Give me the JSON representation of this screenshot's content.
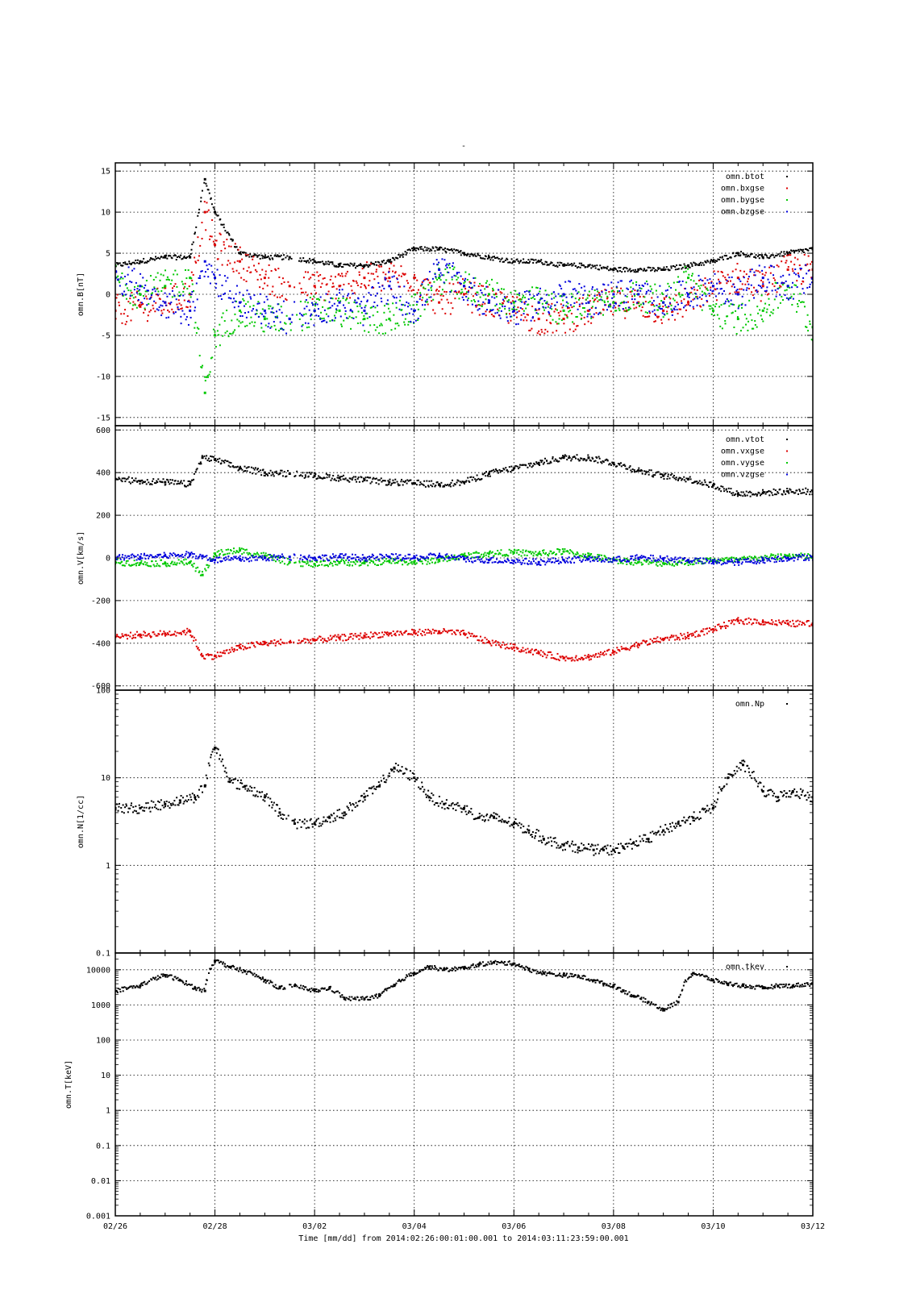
{
  "figure": {
    "title": "-",
    "xlabel": "Time [mm/dd]  from 2014:02:26:00:01:00.001  to  2014:03:11:23:59:00.001",
    "x_tick_labels": [
      "02/26",
      "02/28",
      "03/02",
      "03/04",
      "03/06",
      "03/08",
      "03/10",
      "03/12"
    ],
    "colors": {
      "black": "#000000",
      "red": "#dd0000",
      "green": "#00c800",
      "blue": "#0000dd"
    }
  },
  "chart_data": [
    {
      "type": "scatter",
      "ylabel": "omn.B[nT]",
      "ylim": [
        -16,
        16
      ],
      "yscale": "linear",
      "y_ticks": [
        -15,
        -10,
        -5,
        0,
        5,
        10,
        15
      ],
      "y_tick_labels": [
        "-15",
        "-10",
        "-5",
        "0",
        "5",
        "10",
        "15"
      ],
      "x_unit": "day of month (Feb/Mar 2014)",
      "x": [
        0,
        0.5,
        1,
        1.5,
        1.8,
        2,
        2.5,
        3,
        3.5,
        4,
        4.5,
        5,
        5.5,
        6,
        6.5,
        7,
        7.5,
        8,
        8.5,
        9,
        9.5,
        10,
        10.5,
        11,
        11.5,
        12,
        12.5,
        13,
        13.5,
        14
      ],
      "series": [
        {
          "name": "omn.btot",
          "color": "black",
          "values": [
            3.5,
            4,
            4.5,
            4.5,
            14,
            10,
            5,
            4.5,
            4.5,
            4,
            3.5,
            3.5,
            4,
            5.5,
            5.5,
            5,
            4.5,
            4,
            4,
            3.5,
            3.5,
            3,
            3,
            3,
            3.5,
            4,
            5,
            4.5,
            5,
            5.5
          ]
        },
        {
          "name": "omn.bxgse",
          "color": "red",
          "values": [
            -2,
            -1.5,
            -1,
            0,
            10,
            6,
            4,
            2,
            1,
            1,
            1,
            2,
            2,
            2,
            -1,
            0,
            -1,
            -2,
            -3,
            -3,
            -2,
            -1,
            -1,
            -2,
            -1,
            1,
            2,
            1,
            3,
            3
          ]
        },
        {
          "name": "omn.bygse",
          "color": "green",
          "values": [
            2,
            0,
            1,
            2,
            -12,
            -5,
            -2,
            -3,
            -3,
            -2,
            -2,
            -3,
            -3,
            -2,
            2,
            1,
            0,
            -1,
            -1,
            -2,
            -1,
            -1,
            0,
            -1,
            2,
            -2,
            -3,
            -2,
            1,
            -4
          ]
        },
        {
          "name": "omn.bzgse",
          "color": "blue",
          "values": [
            2,
            1,
            -1,
            -2,
            4,
            2,
            -1,
            -2,
            -3,
            -2,
            -1,
            -2,
            1,
            -2,
            3,
            1,
            -1,
            -2,
            -1,
            0,
            -1,
            0,
            0,
            -1,
            0,
            1,
            0,
            2,
            1,
            2
          ]
        }
      ],
      "legend": "top-right",
      "grid": true
    },
    {
      "type": "scatter",
      "ylabel": "omn.V[km/s]",
      "ylim": [
        -620,
        620
      ],
      "yscale": "linear",
      "y_ticks": [
        -600,
        -400,
        -200,
        0,
        200,
        400,
        600
      ],
      "y_tick_labels": [
        "-600",
        "-400",
        "-200",
        "0",
        "200",
        "400",
        "600"
      ],
      "x_unit": "day of month (Feb/Mar 2014)",
      "x": [
        0,
        0.5,
        1,
        1.5,
        1.75,
        2,
        2.5,
        3,
        3.5,
        4,
        4.5,
        5,
        5.5,
        6,
        6.5,
        7,
        7.5,
        8,
        8.5,
        9,
        9.5,
        10,
        10.5,
        11,
        11.5,
        12,
        12.5,
        13,
        13.5,
        14
      ],
      "series": [
        {
          "name": "omn.vtot",
          "color": "black",
          "values": [
            370,
            360,
            355,
            345,
            470,
            460,
            420,
            400,
            395,
            385,
            375,
            365,
            355,
            350,
            345,
            355,
            395,
            420,
            445,
            470,
            470,
            445,
            410,
            385,
            370,
            340,
            300,
            305,
            312,
            312
          ]
        },
        {
          "name": "omn.vxgse",
          "color": "red",
          "values": [
            -370,
            -360,
            -355,
            -345,
            -460,
            -460,
            -420,
            -400,
            -395,
            -385,
            -375,
            -365,
            -355,
            -350,
            -345,
            -355,
            -395,
            -420,
            -445,
            -470,
            -465,
            -440,
            -405,
            -380,
            -365,
            -335,
            -295,
            -300,
            -308,
            -308
          ]
        },
        {
          "name": "omn.vygse",
          "color": "green",
          "values": [
            -20,
            -25,
            -25,
            -20,
            -80,
            20,
            35,
            10,
            -20,
            -30,
            -20,
            -25,
            -15,
            -20,
            -10,
            10,
            20,
            25,
            20,
            30,
            10,
            -10,
            -20,
            -25,
            -20,
            -10,
            -10,
            0,
            10,
            5
          ]
        },
        {
          "name": "omn.vzgse",
          "color": "blue",
          "values": [
            0,
            5,
            10,
            15,
            10,
            -10,
            -5,
            0,
            5,
            0,
            5,
            0,
            5,
            0,
            10,
            -5,
            -10,
            -15,
            -20,
            -10,
            -5,
            -10,
            0,
            -5,
            -10,
            -20,
            -20,
            -10,
            0,
            5
          ]
        }
      ],
      "legend": "top-right",
      "grid": true
    },
    {
      "type": "scatter",
      "ylabel": "omn.N[1/cc]",
      "ylim": [
        0.1,
        100
      ],
      "yscale": "log",
      "y_ticks": [
        0.1,
        1,
        10,
        100
      ],
      "y_tick_labels": [
        "0.1",
        "1",
        "10",
        "100"
      ],
      "x_unit": "day of month (Feb/Mar 2014)",
      "x": [
        0,
        0.5,
        1,
        1.3,
        1.6,
        1.8,
        2.0,
        2.3,
        2.6,
        3.0,
        3.3,
        3.6,
        4.0,
        4.3,
        4.6,
        5.0,
        5.3,
        5.6,
        6.0,
        6.3,
        6.6,
        7.0,
        7.3,
        7.6,
        8.0,
        8.3,
        8.6,
        9.0,
        9.3,
        9.6,
        9.8,
        10.0,
        10.2,
        10.4,
        10.7,
        11.0,
        11.3,
        11.6,
        12.0,
        12.3,
        12.6,
        13.0,
        13.3,
        13.6,
        14.0
      ],
      "series": [
        {
          "name": "omn.Np",
          "color": "black",
          "values": [
            4.5,
            4.5,
            5,
            5.5,
            6,
            8,
            22,
            9,
            8,
            6,
            4,
            3,
            3,
            3.5,
            4,
            6,
            8,
            13,
            10,
            6,
            5,
            4.5,
            3.5,
            3.5,
            3,
            2.5,
            2,
            1.7,
            1.6,
            1.5,
            1.5,
            1.5,
            1.6,
            1.8,
            2,
            2.5,
            3,
            3.5,
            4.5,
            10,
            14,
            7,
            6,
            7,
            6
          ]
        }
      ],
      "legend": "top-right",
      "grid": true
    },
    {
      "type": "scatter",
      "ylabel": "omn.T[keV]",
      "ylim": [
        0.001,
        30000
      ],
      "yscale": "log",
      "y_ticks": [
        0.001,
        0.01,
        0.1,
        1,
        10,
        100,
        1000,
        10000
      ],
      "y_tick_labels": [
        "0.001",
        "0.01",
        "0.1",
        "1",
        "10",
        "100",
        "1000",
        "10000"
      ],
      "x_unit": "day of month (Feb/Mar 2014)",
      "x": [
        0,
        0.5,
        1,
        1.3,
        1.6,
        1.8,
        2.0,
        2.3,
        2.6,
        3.0,
        3.3,
        3.6,
        4.0,
        4.3,
        4.6,
        5.0,
        5.3,
        5.6,
        6.0,
        6.3,
        6.6,
        7.0,
        7.3,
        7.6,
        8.0,
        8.3,
        8.6,
        9.0,
        9.3,
        9.6,
        9.8,
        10.0,
        10.2,
        10.4,
        10.7,
        11.0,
        11.3,
        11.6,
        12.0,
        12.3,
        12.6,
        13.0,
        13.3,
        13.6,
        14.0
      ],
      "series": [
        {
          "name": "omn.tkev",
          "color": "black",
          "values": [
            2500,
            3500,
            7000,
            5000,
            3000,
            2500,
            18000,
            12000,
            9000,
            5000,
            3000,
            3500,
            2500,
            3000,
            1500,
            1500,
            1800,
            3500,
            8000,
            12000,
            10000,
            11000,
            14000,
            16000,
            15000,
            10000,
            8000,
            7000,
            6500,
            5000,
            4000,
            3500,
            2500,
            1800,
            1200,
            700,
            1200,
            8000,
            5000,
            4000,
            3500,
            3000,
            3500,
            3500,
            4000
          ]
        }
      ],
      "legend": "top-right",
      "grid": true
    }
  ]
}
